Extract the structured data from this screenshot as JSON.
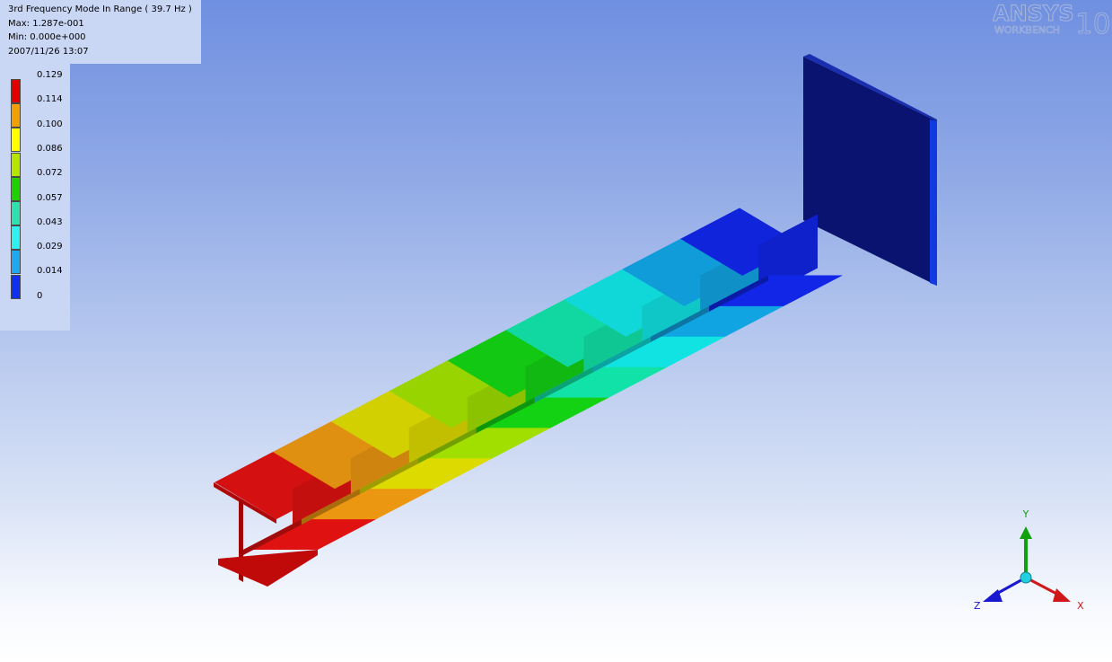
{
  "info": {
    "title": "3rd Frequency Mode In Range ( 39.7 Hz )",
    "max": "Max: 1.287e-001",
    "min": "Min: 0.000e+000",
    "timestamp": "2007/11/26 13:07"
  },
  "legend": {
    "ticks": [
      "0.129",
      "0.114",
      "0.100",
      "0.086",
      "0.072",
      "0.057",
      "0.043",
      "0.029",
      "0.014",
      "0"
    ],
    "colors": [
      "#e00000",
      "#f0a000",
      "#ffff00",
      "#b4e600",
      "#20d000",
      "#30e0b0",
      "#30f0f0",
      "#20a8f0",
      "#1030f0"
    ]
  },
  "logo": {
    "brand": "ANSYS",
    "product": "WORKBENCH",
    "version": "10.0"
  },
  "triad": {
    "y_label": "Y",
    "z_label": "Z",
    "x_label": "X"
  },
  "model": {
    "segment_colors": [
      "#d51010",
      "#e09010",
      "#d2d000",
      "#98d400",
      "#12c812",
      "#10d8a0",
      "#10d8d8",
      "#109cd8",
      "#1024dc"
    ],
    "plate_color": "#0a1470",
    "description_values": {
      "mode": 3,
      "frequency_hz": 39.7
    }
  }
}
